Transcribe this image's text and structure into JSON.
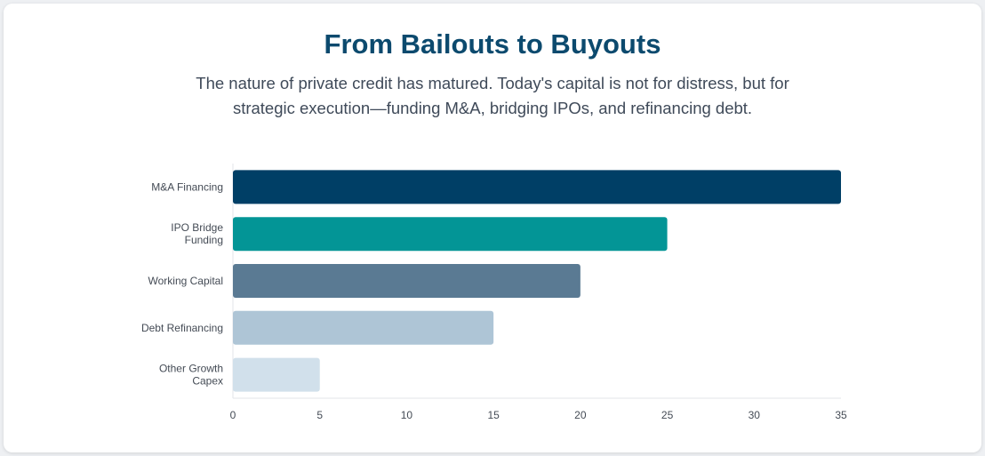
{
  "header": {
    "title": "From Bailouts to Buyouts",
    "subtitle": "The nature of private credit has matured. Today's capital is not for distress, but for strategic execution—funding M&A, bridging IPOs, and refinancing debt."
  },
  "chart_data": {
    "type": "bar",
    "orientation": "horizontal",
    "categories": [
      [
        "M&A Financing"
      ],
      [
        "IPO Bridge",
        "Funding"
      ],
      [
        "Working Capital"
      ],
      [
        "Debt Refinancing"
      ],
      [
        "Other Growth",
        "Capex"
      ]
    ],
    "values": [
      35,
      25,
      20,
      15,
      5
    ],
    "colors": [
      "#003f66",
      "#039596",
      "#5a7a93",
      "#aec5d6",
      "#d1e0eb"
    ],
    "xlim": [
      0,
      35
    ],
    "xticks": [
      0,
      5,
      10,
      15,
      20,
      25,
      30,
      35
    ],
    "xlabel": "",
    "ylabel": "",
    "legend": "none",
    "grid": false
  }
}
